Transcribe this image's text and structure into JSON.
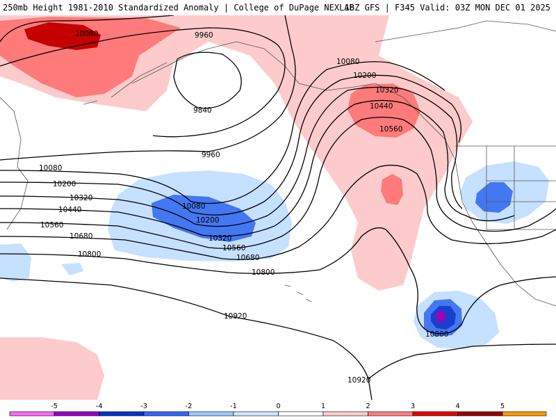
{
  "header": {
    "title": "250mb Height 1981-2010 Standardized Anomaly | College of DuPage NEXLAB",
    "run_info": "18Z GFS | F345 Valid: 03Z MON DEC 01 2025"
  },
  "contour_labels": [
    "10080",
    "9960",
    "9840",
    "9960",
    "10080",
    "10200",
    "10320",
    "10440",
    "10560",
    "10080",
    "10200",
    "10320",
    "10440",
    "10560",
    "10680",
    "10800",
    "10080",
    "10200",
    "10320",
    "10440",
    "10560",
    "10680",
    "10800",
    "10920",
    "10800",
    "10920"
  ],
  "legend": {
    "ticks": [
      "-5",
      "-4",
      "-3",
      "-2",
      "-1",
      "0",
      "1",
      "2",
      "3",
      "4",
      "5"
    ],
    "colors": [
      "#ff66ff",
      "#9900cc",
      "#0033cc",
      "#3366ff",
      "#99ccff",
      "#cce6ff",
      "#ffffff",
      "#ffcccc",
      "#ff8080",
      "#e60000",
      "#990000",
      "#ff9900",
      "#ffcc00"
    ]
  }
}
